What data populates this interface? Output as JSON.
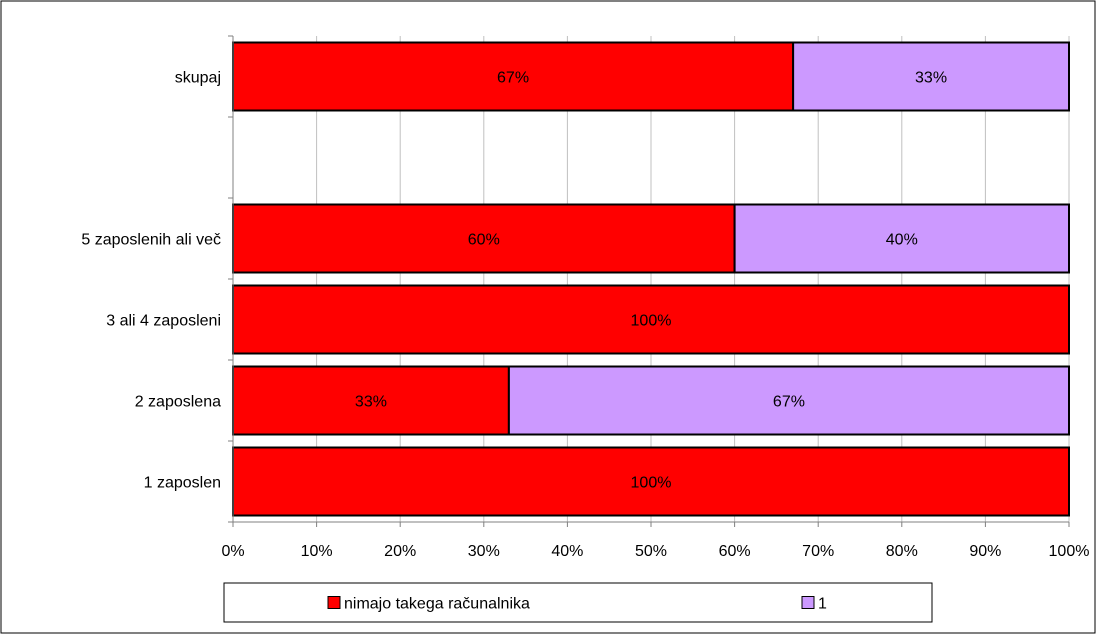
{
  "chart_data": {
    "type": "bar",
    "orientation": "horizontal",
    "stacked": true,
    "percent_stacked": true,
    "categories": [
      "skupaj",
      "",
      "5 zaposlenih ali več",
      "3 ali 4 zaposleni",
      "2 zaposlena",
      "1 zaposlen"
    ],
    "series": [
      {
        "name": "nimajo takega računalnika",
        "color": "#ff0000",
        "values": [
          67,
          null,
          60,
          100,
          33,
          100
        ],
        "labels": [
          "67%",
          "",
          "60%",
          "100%",
          "33%",
          "100%"
        ]
      },
      {
        "name": "1",
        "color": "#cc99ff",
        "values": [
          33,
          null,
          40,
          0,
          67,
          0
        ],
        "labels": [
          "33%",
          "",
          "40%",
          "",
          "67%",
          ""
        ]
      }
    ],
    "x_ticks": [
      "0%",
      "10%",
      "20%",
      "30%",
      "40%",
      "50%",
      "60%",
      "70%",
      "80%",
      "90%",
      "100%"
    ],
    "xlim": [
      0,
      100
    ],
    "grid": true,
    "legend": "bottom"
  }
}
